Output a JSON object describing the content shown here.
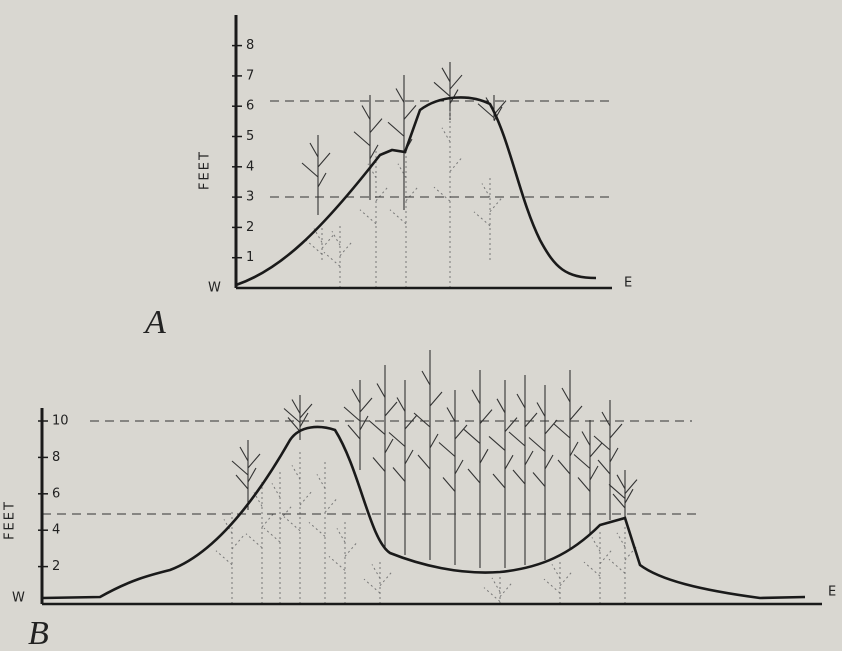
{
  "panels": [
    {
      "label": "A",
      "axis_label": "FEET",
      "west": "W",
      "east": "E",
      "ticks": [
        1,
        2,
        3,
        4,
        5,
        6,
        7,
        8
      ]
    },
    {
      "label": "B",
      "axis_label": "FEET",
      "west": "W",
      "east": "E",
      "ticks": [
        2,
        4,
        6,
        8,
        10
      ]
    }
  ]
}
